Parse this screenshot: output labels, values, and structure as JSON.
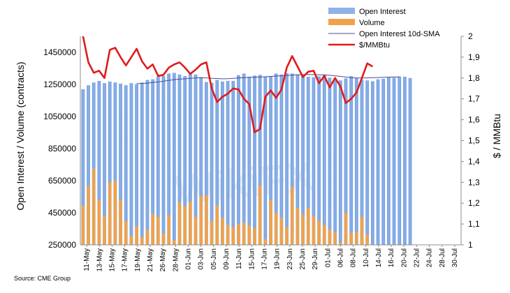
{
  "chart_data": {
    "type": "bar",
    "colors": {
      "open_interest": "#8fb3e8",
      "volume": "#f0a24a",
      "sma": "#4b4b9a",
      "price": "#e01b1b"
    },
    "legend": [
      {
        "name": "Open Interest",
        "kind": "bar",
        "color": "#8fb3e8"
      },
      {
        "name": "Volume",
        "kind": "bar",
        "color": "#f0a24a"
      },
      {
        "name": "Open Interest 10d-SMA",
        "kind": "line",
        "color": "#4b4b9a"
      },
      {
        "name": "$/MMBtu",
        "kind": "line",
        "color": "#e01b1b"
      }
    ],
    "ylabel_left": "Open Interest / Volume (contracts)",
    "ylabel_right": "$ / MMBtu",
    "ylim_left": [
      250000,
      1550000
    ],
    "ylim_right": [
      1.0,
      2.0
    ],
    "yticks_left": [
      "250000",
      "450000",
      "650000",
      "850000",
      "1050000",
      "1250000",
      "1450000"
    ],
    "yticks_right": [
      "1",
      "1,1",
      "1,2",
      "1,3",
      "1,4",
      "1,5",
      "1,6",
      "1,7",
      "1,8",
      "1,9",
      "2"
    ],
    "date_labels": [
      "11-May",
      "13-May",
      "15-May",
      "17-May",
      "19-May",
      "21-May",
      "26-May",
      "28-May",
      "01-Jun",
      "03-Jun",
      "05-Jun",
      "09-Jun",
      "11-Jun",
      "15-Jun",
      "17-Jun",
      "19-Jun",
      "23-Jun",
      "25-Jun",
      "29-Jun",
      "01-Jul",
      "06-Jul",
      "08-Jul",
      "10-Jul",
      "14-Jul",
      "16-Jul",
      "20-Jul",
      "22-Jul",
      "24-Jul",
      "28-Jul",
      "30-Jul"
    ],
    "series": [
      {
        "name": "Open Interest",
        "values": [
          1220000,
          1245000,
          1262000,
          1272000,
          1258000,
          1268000,
          1262000,
          1255000,
          1245000,
          1258000,
          1252000,
          1262000,
          1278000,
          1282000,
          1300000,
          1302000,
          1318000,
          1322000,
          1312000,
          1302000,
          1318000,
          1312000,
          1295000,
          1265000,
          1260000,
          1278000,
          1268000,
          1272000,
          1272000,
          1308000,
          1318000,
          1298000,
          1305000,
          1310000,
          1298000,
          1302000,
          1318000,
          1312000,
          1320000,
          1318000,
          1312000,
          1305000,
          1298000,
          1295000,
          1300000,
          1310000,
          1292000,
          1285000,
          1275000,
          1288000,
          1302000,
          1288000,
          1280000,
          1275000,
          1270000,
          1282000,
          1285000,
          1295000,
          1292000,
          1300000,
          1298000,
          1290000,
          null,
          null,
          null,
          null,
          null,
          null,
          null,
          null,
          null
        ]
      },
      {
        "name": "Volume",
        "values": [
          495000,
          620000,
          725000,
          530000,
          430000,
          640000,
          650000,
          530000,
          400000,
          305000,
          365000,
          300000,
          345000,
          445000,
          425000,
          320000,
          435000,
          280000,
          515000,
          490000,
          520000,
          425000,
          555000,
          560000,
          400000,
          495000,
          420000,
          375000,
          360000,
          380000,
          390000,
          370000,
          355000,
          620000,
          285000,
          530000,
          450000,
          420000,
          360000,
          610000,
          480000,
          440000,
          480000,
          430000,
          400000,
          375000,
          345000,
          330000,
          265000,
          450000,
          325000,
          330000,
          425000,
          315000,
          null,
          null,
          null,
          null,
          null,
          null,
          null,
          null,
          null,
          null,
          null,
          null,
          null,
          null,
          null,
          null,
          null
        ]
      },
      {
        "name": "Open Interest 10d-SMA",
        "values": [
          null,
          null,
          null,
          null,
          null,
          null,
          null,
          null,
          null,
          null,
          1255000,
          1256000,
          1258000,
          1262000,
          1266000,
          1270000,
          1275000,
          1280000,
          1283000,
          1285000,
          1288000,
          1290000,
          1292000,
          1290000,
          1288000,
          1287000,
          1285000,
          1286000,
          1288000,
          1290000,
          1292000,
          1294000,
          1295000,
          1296000,
          1298000,
          1300000,
          1302000,
          1304000,
          1306000,
          1308000,
          1310000,
          1311000,
          1312000,
          1311000,
          1310000,
          1309000,
          1307000,
          1304000,
          1300000,
          1296000,
          1292000,
          1290000,
          1290000,
          1291000,
          1292000,
          1293000,
          1294000,
          1295000,
          1296000,
          1297000,
          null,
          null,
          null,
          null,
          null,
          null,
          null,
          null,
          null,
          null,
          null
        ]
      },
      {
        "name": "$/MMBtu",
        "values": [
          2.0,
          1.875,
          1.825,
          1.835,
          1.8,
          1.935,
          1.945,
          1.9,
          1.86,
          1.9,
          1.94,
          1.88,
          1.845,
          1.865,
          1.81,
          1.815,
          1.85,
          1.865,
          1.875,
          1.85,
          1.82,
          1.84,
          1.865,
          1.875,
          1.75,
          1.685,
          1.71,
          1.725,
          1.75,
          1.745,
          1.7,
          1.675,
          1.54,
          1.555,
          1.71,
          1.74,
          1.705,
          1.745,
          1.85,
          1.905,
          1.855,
          1.805,
          1.83,
          1.835,
          1.775,
          1.81,
          1.755,
          1.8,
          1.76,
          1.68,
          1.7,
          1.73,
          1.8,
          1.87,
          1.855,
          null,
          null,
          null,
          null,
          null,
          null,
          null,
          null,
          null,
          null,
          null,
          null,
          null,
          null,
          null,
          null
        ]
      }
    ]
  },
  "watermark": "WikiFX",
  "source": "Source: CME Group"
}
